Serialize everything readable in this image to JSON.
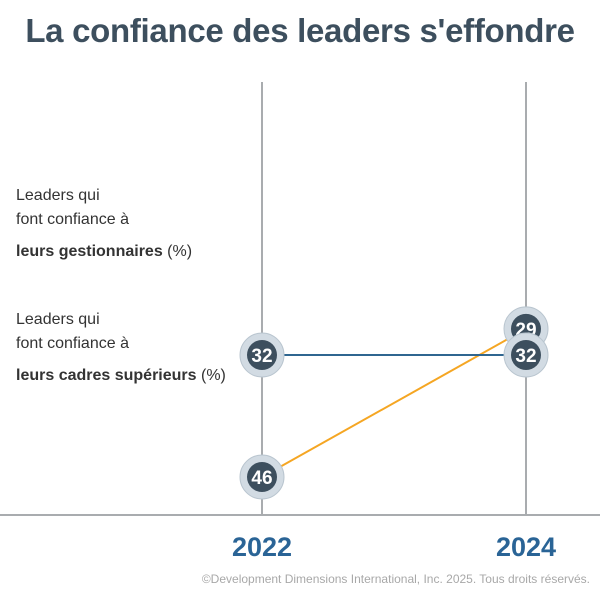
{
  "chart_data": {
    "type": "line",
    "title": "La confiance des leaders s'effondre",
    "x": [
      "2022",
      "2024"
    ],
    "series": [
      {
        "name": "Leaders qui font confiance à leurs gestionnaires (%)",
        "label_lines": [
          "Leaders qui",
          "font confiance à"
        ],
        "label_bold": "leurs gestionnaires",
        "label_unit": " (%)",
        "values": [
          46,
          29
        ],
        "color": "#f5a623"
      },
      {
        "name": "Leaders qui font confiance à leurs cadres supérieurs (%)",
        "label_lines": [
          "Leaders qui",
          "font confiance à"
        ],
        "label_bold": "leurs cadres supérieurs",
        "label_unit": " (%)",
        "values": [
          32,
          32
        ],
        "color": "#2f6690"
      }
    ]
  },
  "colors": {
    "title": "#3d4f5e",
    "year_label": "#2a6496",
    "marker_fill": "#3d4f5e",
    "marker_ring": "#d2dbe3",
    "gridline": "#a9acaf"
  },
  "footer": {
    "copyright": "©Development Dimensions International, Inc. 2025. Tous droits réservés."
  }
}
